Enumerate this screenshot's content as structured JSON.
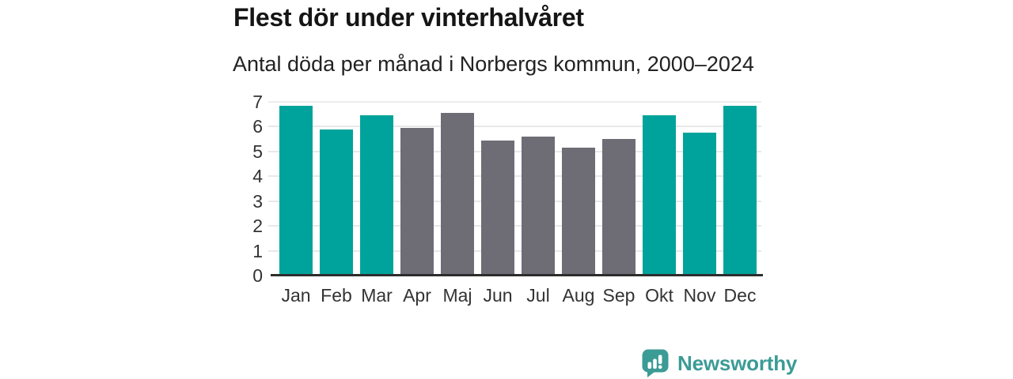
{
  "title": "Flest dör under vinterhalvåret",
  "subtitle": "Antal döda per månad i Norbergs kommun, 2000–2024",
  "chart_data": {
    "type": "bar",
    "categories": [
      "Jan",
      "Feb",
      "Mar",
      "Apr",
      "Maj",
      "Jun",
      "Jul",
      "Aug",
      "Sep",
      "Okt",
      "Nov",
      "Dec"
    ],
    "values": [
      6.85,
      5.9,
      6.45,
      5.95,
      6.55,
      5.45,
      5.6,
      5.15,
      5.5,
      6.45,
      5.75,
      6.85
    ],
    "bar_seasons": [
      "winter",
      "winter",
      "winter",
      "summer",
      "summer",
      "summer",
      "summer",
      "summer",
      "summer",
      "winter",
      "winter",
      "winter"
    ],
    "title": "Flest dör under vinterhalvåret",
    "subtitle": "Antal döda per månad i Norbergs kommun, 2000–2024",
    "xlabel": "",
    "ylabel": "",
    "ylim": [
      0,
      7
    ],
    "yticks": [
      0,
      1,
      2,
      3,
      4,
      5,
      6,
      7
    ],
    "grid": true,
    "legend": false
  },
  "colors": {
    "winter_bar": "#00a39b",
    "summer_bar": "#6e6d76",
    "gridline": "#e8e8e8",
    "axis": "#2d2d2d",
    "tick_text": "#333333",
    "logo": "#3b9b95"
  },
  "branding": {
    "logo_text": "Newsworthy",
    "logo_icon": "bar-chart-speech-bubble"
  }
}
